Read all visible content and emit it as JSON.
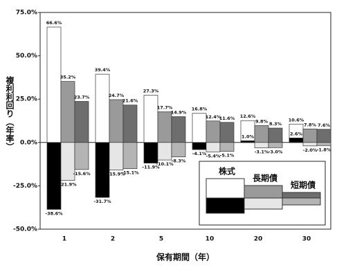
{
  "chart_data": {
    "type": "range-bar",
    "x_label": "保有期間（年）",
    "y_label": "複利利回り（年率）",
    "categories": [
      "1",
      "2",
      "5",
      "10",
      "20",
      "30"
    ],
    "ylim": [
      -50,
      75
    ],
    "yticks": [
      {
        "value": -50,
        "label": "-50.0%"
      },
      {
        "value": -25,
        "label": "-25.0%"
      },
      {
        "value": 0,
        "label": "0.0%"
      },
      {
        "value": 25,
        "label": "25.0%"
      },
      {
        "value": 50,
        "label": "50.0%"
      },
      {
        "value": 75,
        "label": "75.0%"
      }
    ],
    "series": [
      {
        "name": "株式",
        "color": "#ffffff",
        "min_color": "#000000",
        "values": [
          66.6,
          39.4,
          27.3,
          16.8,
          12.6,
          10.6
        ],
        "value_labels": [
          "66.6%",
          "39.4%",
          "27.3%",
          "16.8%",
          "12.6%",
          "10.6%"
        ],
        "min_values": [
          -38.6,
          -31.7,
          -11.9,
          -4.1,
          1.0,
          2.6
        ],
        "min_value_labels": [
          "-38.6%",
          "-31.7%",
          "-11.9%",
          "-4.1%",
          "1.0%",
          "2.6%"
        ]
      },
      {
        "name": "長期債",
        "color": "#9a9a9a",
        "min_color": "#e6e6e6",
        "values": [
          35.2,
          24.7,
          17.7,
          12.4,
          9.8,
          7.8
        ],
        "value_labels": [
          "35.2%",
          "24.7%",
          "17.7%",
          "12.4%",
          "9.8%",
          "7.8%"
        ],
        "min_values": [
          -21.9,
          -15.9,
          -10.1,
          -5.4,
          -3.1,
          -2.0
        ],
        "min_value_labels": [
          "-21.9%",
          "-15.9%",
          "-10.1%",
          "-5.4%",
          "-3.1%",
          "-2.0%"
        ]
      },
      {
        "name": "短期債",
        "color": "#6e6e6e",
        "min_color": "#b4b4b4",
        "values": [
          23.7,
          21.6,
          14.9,
          11.6,
          8.3,
          7.6
        ],
        "value_labels": [
          "23.7%",
          "21.6%",
          "14.9%",
          "11.6%",
          "8.3%",
          "7.6%"
        ],
        "min_values": [
          -15.6,
          -15.1,
          -8.3,
          -5.1,
          -3.0,
          -1.8
        ],
        "min_value_labels": [
          "-15.6%",
          "-15.1%",
          "-8.3%",
          "-5.1%",
          "-3.0%",
          "-1.8%"
        ]
      }
    ]
  }
}
